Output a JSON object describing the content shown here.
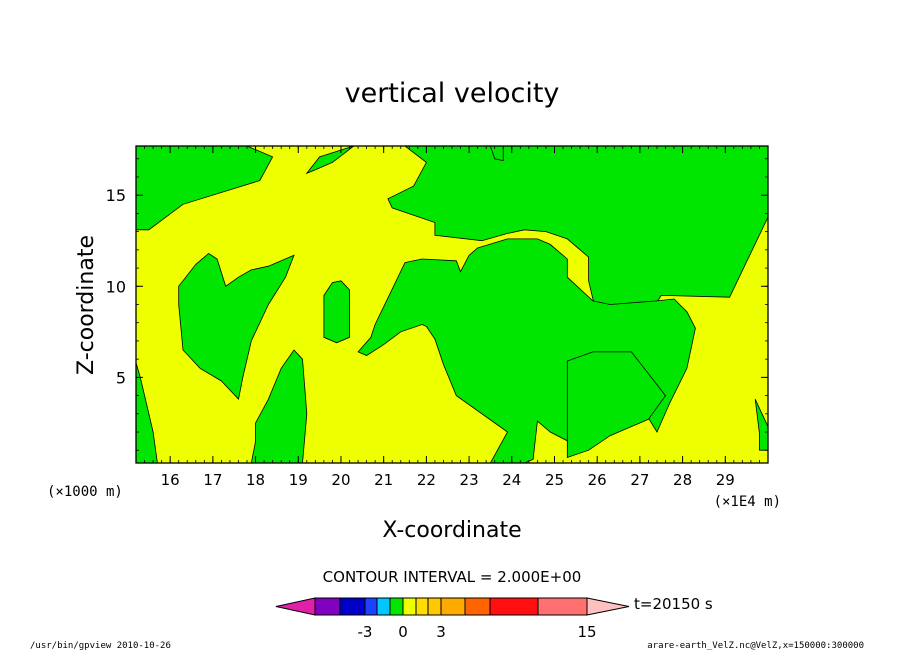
{
  "colors": {
    "positive_fill": "#eeff00",
    "negative_fill": "#00e600",
    "background": "#ffffff",
    "frame": "#000000"
  },
  "chart_data": {
    "type": "heatmap",
    "title": "vertical velocity",
    "xlabel": "X-coordinate",
    "ylabel": "Z-coordinate",
    "x_unit_left": "(×1000 m)",
    "x_unit_right": "(×1E4 m)",
    "xlim": [
      15.2,
      30.0
    ],
    "ylim": [
      0.3,
      17.7
    ],
    "xticks": [
      16,
      17,
      18,
      19,
      20,
      21,
      22,
      23,
      24,
      25,
      26,
      27,
      28,
      29
    ],
    "yticks": [
      5,
      10,
      15
    ],
    "contour_interval": "CONTOUR INTERVAL = 2.000E+00",
    "time_label": "t=20150 s",
    "colorbar": {
      "colors": [
        "#e020a8",
        "#8000c0",
        "#0000c8",
        "#1e40ff",
        "#00c8ff",
        "#00e600",
        "#eeff00",
        "#ffdd00",
        "#ffc800",
        "#ffaa00",
        "#ff6400",
        "#ff1010",
        "#ff7070",
        "#ffc0c0"
      ],
      "tick_labels": [
        "-3",
        "0",
        "3",
        "15"
      ]
    },
    "regions": [
      {
        "sign": "negative",
        "x": [
          15.2,
          16.5,
          17.8,
          18.4,
          18.1,
          16.3,
          15.5,
          15.2
        ],
        "y": [
          17.7,
          17.7,
          17.7,
          17.1,
          15.8,
          14.5,
          13.1,
          13.1
        ]
      },
      {
        "sign": "negative",
        "x": [
          15.2,
          15.3,
          15.6,
          15.7,
          15.2
        ],
        "y": [
          5.8,
          5.0,
          2.0,
          0.3,
          0.3
        ]
      },
      {
        "sign": "negative",
        "x": [
          16.2,
          16.6,
          16.9,
          17.1,
          17.3,
          17.6,
          17.9,
          18.3,
          18.9,
          18.7,
          18.3,
          17.9,
          17.7,
          17.6,
          17.2,
          16.7,
          16.3,
          16.2
        ],
        "y": [
          10.0,
          11.2,
          11.8,
          11.5,
          10.0,
          10.5,
          10.9,
          11.1,
          11.7,
          10.5,
          9.0,
          7.0,
          5.0,
          3.8,
          4.8,
          5.5,
          6.5,
          9.0
        ]
      },
      {
        "sign": "negative",
        "x": [
          18.0,
          18.3,
          18.6,
          18.9,
          19.1,
          19.2,
          19.1,
          17.9,
          18.0
        ],
        "y": [
          2.5,
          3.8,
          5.5,
          6.5,
          6.0,
          3.0,
          0.3,
          0.3,
          1.5
        ]
      },
      {
        "sign": "negative",
        "x": [
          19.6,
          19.8,
          20.0,
          20.2,
          20.2,
          19.9,
          19.6,
          19.6
        ],
        "y": [
          9.5,
          10.2,
          10.3,
          9.8,
          7.2,
          6.9,
          7.2,
          8.5
        ]
      },
      {
        "sign": "negative",
        "x": [
          19.2,
          19.5,
          20.3,
          21.1,
          21.5,
          22.0,
          21.7,
          21.1,
          21.2,
          22.2,
          22.2,
          23.3,
          23.9,
          24.3,
          24.8,
          25.3,
          25.8,
          25.8,
          26.0,
          26.4,
          27.1,
          27.5,
          29.1,
          30.0,
          30.0,
          29.3,
          29.1,
          28.7,
          28.3,
          27.5,
          26.7,
          26.1,
          25.9,
          25.3,
          25.0,
          24.3,
          23.8,
          23.1,
          22.3,
          21.8,
          21.5,
          21.3,
          20.3,
          19.8,
          19.4,
          19.2
        ],
        "y": [
          16.2,
          17.1,
          17.7,
          17.7,
          17.7,
          16.8,
          15.5,
          14.8,
          14.3,
          13.5,
          12.8,
          12.5,
          12.9,
          13.1,
          13.0,
          12.6,
          11.6,
          10.3,
          8.3,
          7.6,
          8.0,
          9.5,
          9.4,
          13.8,
          17.7,
          17.7,
          17.7,
          17.7,
          17.7,
          17.7,
          17.7,
          17.7,
          17.7,
          17.7,
          17.7,
          17.7,
          17.7,
          17.7,
          17.7,
          17.7,
          17.7,
          17.7,
          17.7,
          16.8,
          16.4,
          16.2
        ]
      },
      {
        "sign": "negative",
        "x": [
          20.8,
          21.5,
          21.9,
          22.7,
          22.8,
          23.0,
          23.2,
          23.9,
          24.6,
          24.9,
          25.3,
          25.3,
          25.9,
          26.3,
          27.4,
          27.8,
          28.1,
          28.3,
          28.1,
          27.7,
          27.4,
          26.9,
          26.7,
          26.3,
          26.1,
          25.7,
          25.4,
          24.9,
          24.6,
          24.5,
          24.3,
          23.5,
          23.9,
          22.7,
          22.4,
          22.2,
          22.0,
          21.9,
          21.4,
          21.0,
          20.6,
          20.4,
          20.7
        ],
        "y": [
          7.9,
          11.3,
          11.5,
          11.4,
          10.8,
          11.7,
          12.1,
          12.6,
          12.6,
          12.3,
          11.5,
          10.5,
          9.2,
          9.0,
          9.2,
          9.3,
          8.6,
          7.7,
          5.5,
          3.6,
          2.0,
          3.9,
          4.8,
          3.5,
          2.4,
          1.8,
          1.4,
          2.0,
          2.6,
          0.5,
          0.3,
          0.3,
          2.0,
          4.0,
          5.7,
          7.1,
          7.8,
          7.9,
          7.5,
          6.8,
          6.2,
          6.4,
          7.2
        ]
      },
      {
        "sign": "negative",
        "x": [
          23.5,
          23.6,
          23.8,
          23.8,
          23.5
        ],
        "y": [
          17.7,
          17.0,
          16.9,
          17.7,
          17.7
        ]
      },
      {
        "sign": "negative",
        "x": [
          25.3,
          25.9,
          26.8,
          27.6,
          27.2,
          26.3,
          25.8,
          25.3
        ],
        "y": [
          5.9,
          6.4,
          6.4,
          4.0,
          2.7,
          1.8,
          1.0,
          0.6
        ]
      },
      {
        "sign": "negative",
        "x": [
          29.8,
          30.0,
          30.0,
          29.7,
          29.8
        ],
        "y": [
          1.0,
          1.0,
          2.3,
          3.8,
          1.9
        ]
      }
    ]
  },
  "footer": {
    "left": "/usr/bin/gpview   2010-10-26",
    "right": "arare-earth_VelZ.nc@VelZ,x=150000:300000"
  }
}
